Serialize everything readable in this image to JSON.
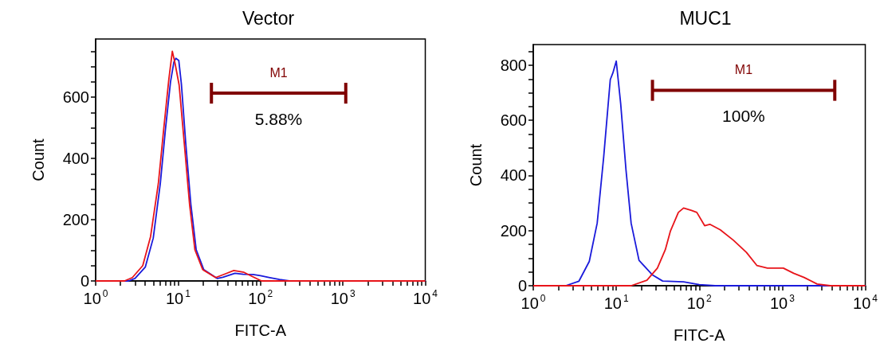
{
  "chart_data": [
    {
      "type": "line",
      "title": "Vector",
      "xlabel": "FITC-A",
      "ylabel": "Count",
      "log": "x",
      "grid": false,
      "marker": "none",
      "line_style": "solid",
      "xlim": [
        1,
        10000
      ],
      "xticks": [
        {
          "value": 1,
          "label": "10$^{0}$"
        },
        {
          "value": 2,
          "label": null
        },
        {
          "value": 3,
          "label": null
        },
        {
          "value": 4,
          "label": null
        },
        {
          "value": 5,
          "label": null
        },
        {
          "value": 6,
          "label": null
        },
        {
          "value": 7,
          "label": null
        },
        {
          "value": 8,
          "label": null
        },
        {
          "value": 9,
          "label": null
        },
        {
          "value": 10,
          "label": "10$^{1}$"
        },
        {
          "value": 20,
          "label": null
        },
        {
          "value": 30,
          "label": null
        },
        {
          "value": 40,
          "label": null
        },
        {
          "value": 50,
          "label": null
        },
        {
          "value": 60,
          "label": null
        },
        {
          "value": 70,
          "label": null
        },
        {
          "value": 80,
          "label": null
        },
        {
          "value": 90,
          "label": null
        },
        {
          "value": 100,
          "label": "10$^{2}$"
        },
        {
          "value": 200,
          "label": null
        },
        {
          "value": 300,
          "label": null
        },
        {
          "value": 400,
          "label": null
        },
        {
          "value": 500,
          "label": null
        },
        {
          "value": 600,
          "label": null
        },
        {
          "value": 700,
          "label": null
        },
        {
          "value": 800,
          "label": null
        },
        {
          "value": 900,
          "label": null
        },
        {
          "value": 1000,
          "label": "10$^{3}$"
        },
        {
          "value": 2000,
          "label": null
        },
        {
          "value": 3000,
          "label": null
        },
        {
          "value": 4000,
          "label": null
        },
        {
          "value": 5000,
          "label": null
        },
        {
          "value": 6000,
          "label": null
        },
        {
          "value": 7000,
          "label": null
        },
        {
          "value": 8000,
          "label": null
        },
        {
          "value": 9000,
          "label": null
        },
        {
          "value": 10000,
          "label": "10$^{4}$"
        }
      ],
      "ylim": [
        0,
        790
      ],
      "yticks": [
        0,
        {
          "value": 50,
          "label": null
        },
        {
          "value": 100,
          "label": null
        },
        {
          "value": 150,
          "label": null
        },
        200,
        {
          "value": 250,
          "label": null
        },
        {
          "value": 300,
          "label": null
        },
        {
          "value": 350,
          "label": null
        },
        400,
        {
          "value": 450,
          "label": null
        },
        {
          "value": 500,
          "label": null
        },
        {
          "value": 550,
          "label": null
        },
        600,
        {
          "value": 650,
          "label": null
        },
        {
          "value": 700,
          "label": null
        },
        {
          "value": 750,
          "label": null
        }
      ],
      "series": [
        {
          "color": "#1a1adb",
          "x": [
            1,
            2.5,
            3.0,
            4.0,
            5.0,
            6.1,
            7.0,
            8.1,
            8.9,
            9.4,
            10.2,
            11,
            12.4,
            14.3,
            16.6,
            20.5,
            30,
            35,
            49,
            62,
            81,
            100,
            130,
            170,
            224,
            10000
          ],
          "values": [
            0,
            0,
            8,
            45,
            140,
            320,
            490,
            650,
            715,
            727,
            720,
            640,
            449,
            250,
            102,
            37,
            8,
            12,
            25,
            22,
            21,
            17,
            11,
            5,
            0,
            0
          ]
        },
        {
          "color": "#e8141a",
          "x": [
            1,
            2.24,
            2.79,
            3.73,
            4.64,
            5.77,
            6.68,
            7.72,
            8.52,
            9.2,
            10.3,
            11.9,
            13.8,
            16,
            19.9,
            28.6,
            38.2,
            47.5,
            63.2,
            79,
            103,
            10000
          ],
          "values": [
            0,
            0,
            11,
            50,
            145,
            319,
            493,
            657,
            750,
            710,
            640,
            449,
            250,
            102,
            37,
            11,
            24,
            34,
            28,
            15,
            0,
            0
          ]
        },
        {
          "color": "#800000",
          "x": [
            25.4,
            1084
          ],
          "values": [
            613,
            613
          ],
          "errors": [
            34,
            34
          ]
        }
      ],
      "annotations": [
        "M1",
        "5.88%"
      ]
    },
    {
      "type": "line",
      "title": "MUC1",
      "xlabel": "FITC-A",
      "ylabel": "Count",
      "log": "x",
      "grid": false,
      "marker": "none",
      "line_style": "solid",
      "xlim": [
        1,
        10000
      ],
      "xticks": [
        {
          "value": 1,
          "label": "10$^{0}$"
        },
        {
          "value": 2,
          "label": null
        },
        {
          "value": 3,
          "label": null
        },
        {
          "value": 4,
          "label": null
        },
        {
          "value": 5,
          "label": null
        },
        {
          "value": 6,
          "label": null
        },
        {
          "value": 7,
          "label": null
        },
        {
          "value": 8,
          "label": null
        },
        {
          "value": 9,
          "label": null
        },
        {
          "value": 10,
          "label": "10$^{1}$"
        },
        {
          "value": 20,
          "label": null
        },
        {
          "value": 30,
          "label": null
        },
        {
          "value": 40,
          "label": null
        },
        {
          "value": 50,
          "label": null
        },
        {
          "value": 60,
          "label": null
        },
        {
          "value": 70,
          "label": null
        },
        {
          "value": 80,
          "label": null
        },
        {
          "value": 90,
          "label": null
        },
        {
          "value": 100,
          "label": "10$^{2}$"
        },
        {
          "value": 200,
          "label": null
        },
        {
          "value": 300,
          "label": null
        },
        {
          "value": 400,
          "label": null
        },
        {
          "value": 500,
          "label": null
        },
        {
          "value": 600,
          "label": null
        },
        {
          "value": 700,
          "label": null
        },
        {
          "value": 800,
          "label": null
        },
        {
          "value": 900,
          "label": null
        },
        {
          "value": 1000,
          "label": "10$^{3}$"
        },
        {
          "value": 2000,
          "label": null
        },
        {
          "value": 3000,
          "label": null
        },
        {
          "value": 4000,
          "label": null
        },
        {
          "value": 5000,
          "label": null
        },
        {
          "value": 6000,
          "label": null
        },
        {
          "value": 7000,
          "label": null
        },
        {
          "value": 8000,
          "label": null
        },
        {
          "value": 9000,
          "label": null
        },
        {
          "value": 10000,
          "label": "10$^{4}$"
        }
      ],
      "ylim": [
        0,
        875
      ],
      "yticks": [
        0,
        {
          "value": 50,
          "label": null
        },
        {
          "value": 100,
          "label": null
        },
        {
          "value": 150,
          "label": null
        },
        200,
        {
          "value": 250,
          "label": null
        },
        {
          "value": 300,
          "label": null
        },
        {
          "value": 350,
          "label": null
        },
        400,
        {
          "value": 450,
          "label": null
        },
        {
          "value": 500,
          "label": null
        },
        {
          "value": 550,
          "label": null
        },
        600,
        {
          "value": 650,
          "label": null
        },
        {
          "value": 700,
          "label": null
        },
        {
          "value": 750,
          "label": null
        },
        800,
        {
          "value": 850,
          "label": null
        }
      ],
      "series": [
        {
          "color": "#1a1adb",
          "x": [
            1,
            2.46,
            3.54,
            4.73,
            5.89,
            7.06,
            8.47,
            9.1,
            10,
            11.3,
            13.1,
            15.1,
            18.8,
            27.1,
            36.2,
            64.7,
            100,
            155,
            10000
          ],
          "values": [
            0,
            0,
            16,
            88,
            227,
            468,
            748,
            772,
            815,
            661,
            420,
            227,
            92,
            40,
            17,
            14,
            4,
            0,
            0
          ]
        },
        {
          "color": "#e8141a",
          "x": [
            1,
            15.1,
            23.4,
            31.3,
            39,
            45,
            56,
            64.7,
            80.5,
            93.4,
            116,
            134,
            179,
            258,
            370,
            496,
            662,
            1030,
            1372,
            1833,
            2630,
            3800,
            10000
          ],
          "values": [
            0,
            0,
            20,
            64,
            131,
            199,
            266,
            282,
            273,
            266,
            218,
            223,
            203,
            165,
            121,
            73,
            64,
            64,
            45,
            30,
            6,
            0,
            0
          ]
        },
        {
          "color": "#800000",
          "x": [
            27.3,
            4290
          ],
          "values": [
            709,
            709
          ],
          "errors": [
            38,
            38
          ]
        }
      ],
      "annotations": [
        "M1",
        "100%"
      ]
    }
  ]
}
